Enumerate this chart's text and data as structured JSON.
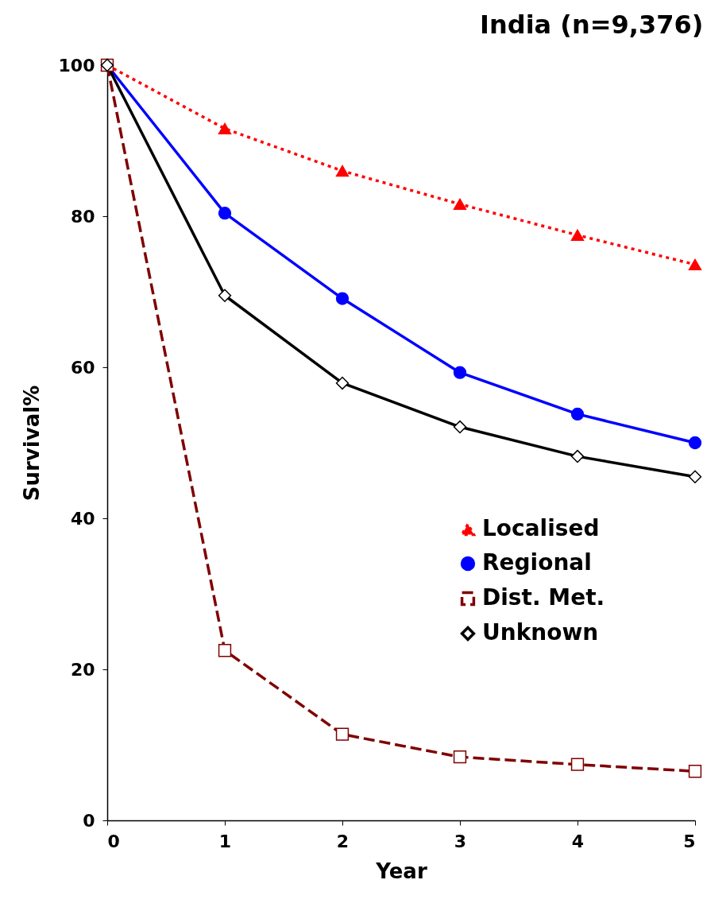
{
  "chart_data": {
    "type": "line",
    "title": "India (n=9,376)",
    "xlabel": "Year",
    "ylabel": "Survival%",
    "x": [
      0,
      1,
      2,
      3,
      4,
      5
    ],
    "xlim": [
      0,
      5
    ],
    "xticks": [
      0,
      1,
      2,
      3,
      4,
      5
    ],
    "ylim": [
      0,
      100
    ],
    "yticks": [
      0,
      20,
      40,
      60,
      80,
      100
    ],
    "grid": false,
    "legend": "right",
    "series": [
      {
        "name": "Localised",
        "color": "#ff0000",
        "marker": "triangle",
        "line_style": "dotted",
        "values": [
          100,
          91.6,
          86.0,
          81.6,
          77.5,
          73.6
        ]
      },
      {
        "name": "Regional",
        "color": "#0000ff",
        "marker": "circle",
        "line_style": "solid",
        "values": [
          100,
          80.4,
          69.1,
          59.3,
          53.8,
          50.0
        ]
      },
      {
        "name": "Dist. Met.",
        "color": "#800000",
        "marker": "square",
        "line_style": "dashed",
        "values": [
          100,
          22.5,
          11.4,
          8.4,
          7.4,
          6.5
        ]
      },
      {
        "name": "Unknown",
        "color": "#000000",
        "marker": "diamond",
        "line_style": "solid",
        "values": [
          100,
          69.5,
          57.9,
          52.1,
          48.2,
          45.5
        ]
      }
    ]
  }
}
